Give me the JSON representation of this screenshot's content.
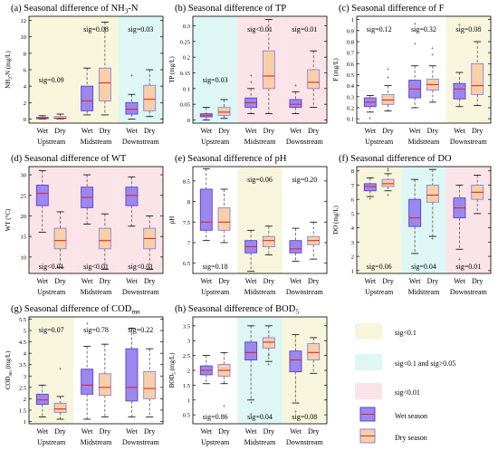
{
  "colors": {
    "sig_lt_0_1": "#f7f6dd",
    "sig_between": "#def6f4",
    "sig_lt_0_01": "#fbe4e7",
    "wet_fill": "#9b88ee",
    "wet_edge": "#5a3fd0",
    "dry_fill": "#f8cfa6",
    "dry_edge": "#8a82e3",
    "median": "#e02828",
    "whisker": "#555555",
    "outlier": "#e03030"
  },
  "categories": [
    "Upstream",
    "Midstream",
    "Downstream"
  ],
  "season_labels": [
    "Wet",
    "Dry"
  ],
  "legend": {
    "items": [
      {
        "label": "sig<0.1",
        "kind": "sig_lt_0_1"
      },
      {
        "label": "sig<0.1 and sig>0.05",
        "kind": "sig_between"
      },
      {
        "label": "sig<0.01",
        "kind": "sig_lt_0_01"
      },
      {
        "label": "Wet season",
        "kind": "wet"
      },
      {
        "label": "Dry season",
        "kind": "dry"
      }
    ]
  },
  "chart_data": [
    {
      "id": "nh3n",
      "type": "box",
      "title": "(a)  Seasonal difference of NH",
      "title_sub": "3",
      "title_after": "-N",
      "ylabel": "NH",
      "ylabel_sub": "3",
      "ylabel_after": "-N (mg/L)",
      "ylim": [
        -0.5,
        12.5
      ],
      "yticks": [
        0,
        2,
        4,
        6,
        8,
        10,
        12
      ],
      "bg": [
        "sig_lt_0_1",
        "sig_lt_0_1",
        "sig_between"
      ],
      "sig": [
        "sig=0.09",
        "sig=0.08",
        "sig=0.03"
      ],
      "sig_pos": [
        "mid",
        "top",
        "top"
      ],
      "wet": [
        {
          "min": 0.0,
          "q1": 0.05,
          "median": 0.1,
          "q3": 0.2,
          "max": 0.4,
          "outliers": []
        },
        {
          "min": 0.5,
          "q1": 1.0,
          "median": 2.2,
          "q3": 4.0,
          "max": 6.2,
          "outliers": []
        },
        {
          "min": 0.0,
          "q1": 0.6,
          "median": 1.2,
          "q3": 2.0,
          "max": 3.0,
          "outliers": [
            5.3
          ]
        }
      ],
      "dry": [
        {
          "min": 0.0,
          "q1": 0.05,
          "median": 0.1,
          "q3": 0.3,
          "max": 0.6,
          "outliers": []
        },
        {
          "min": 0.5,
          "q1": 2.2,
          "median": 4.4,
          "q3": 6.2,
          "max": 11.8,
          "outliers": []
        },
        {
          "min": 0.3,
          "q1": 1.0,
          "median": 2.4,
          "q3": 4.1,
          "max": 6.0,
          "outliers": []
        }
      ]
    },
    {
      "id": "tp",
      "type": "box",
      "title": "(b)  Seasonal difference of TP",
      "ylabel": "TP (mg/L)",
      "ylim": [
        -0.01,
        0.33
      ],
      "yticks": [
        0,
        0.05,
        0.1,
        0.15,
        0.2,
        0.25,
        0.3
      ],
      "bg": [
        "sig_between",
        "sig_lt_0_01",
        "sig_lt_0_01"
      ],
      "sig": [
        "sig=0.03",
        "sig<0.01",
        "sig=0.01"
      ],
      "sig_pos": [
        "mid",
        "top",
        "top"
      ],
      "wet": [
        {
          "min": 0.0,
          "q1": 0.01,
          "median": 0.015,
          "q3": 0.02,
          "max": 0.04,
          "outliers": []
        },
        {
          "min": 0.02,
          "q1": 0.04,
          "median": 0.055,
          "q3": 0.07,
          "max": 0.1,
          "outliers": [
            0.12,
            0.14
          ]
        },
        {
          "min": 0.02,
          "q1": 0.04,
          "median": 0.05,
          "q3": 0.065,
          "max": 0.09,
          "outliers": [
            0.11
          ]
        }
      ],
      "dry": [
        {
          "min": 0.005,
          "q1": 0.015,
          "median": 0.025,
          "q3": 0.04,
          "max": 0.065,
          "outliers": []
        },
        {
          "min": 0.02,
          "q1": 0.1,
          "median": 0.14,
          "q3": 0.22,
          "max": 0.32,
          "outliers": []
        },
        {
          "min": 0.04,
          "q1": 0.1,
          "median": 0.12,
          "q3": 0.16,
          "max": 0.22,
          "outliers": []
        }
      ]
    },
    {
      "id": "f",
      "type": "box",
      "title": "(c)  Seasonal difference of F",
      "ylabel": "F (mg/L)",
      "ylim": [
        0.06,
        1.03
      ],
      "yticks": [
        0.1,
        0.2,
        0.3,
        0.4,
        0.5,
        0.6,
        0.7,
        0.8,
        0.9,
        1
      ],
      "bg": [
        "none",
        "none",
        "sig_lt_0_1"
      ],
      "sig": [
        "sig=0.12",
        "sig=0.32",
        "sig=0.08"
      ],
      "sig_pos": [
        "top",
        "top",
        "top"
      ],
      "wet": [
        {
          "min": 0.16,
          "q1": 0.21,
          "median": 0.25,
          "q3": 0.29,
          "max": 0.31,
          "outliers": [
            0.1
          ]
        },
        {
          "min": 0.2,
          "q1": 0.29,
          "median": 0.37,
          "q3": 0.45,
          "max": 0.58,
          "outliers": [
            0.78,
            0.9,
            0.96
          ]
        },
        {
          "min": 0.21,
          "q1": 0.28,
          "median": 0.37,
          "q3": 0.42,
          "max": 0.52,
          "outliers": [
            0.95
          ]
        }
      ],
      "dry": [
        {
          "min": 0.17,
          "q1": 0.23,
          "median": 0.27,
          "q3": 0.32,
          "max": 0.4,
          "outliers": [
            0.47,
            0.55
          ]
        },
        {
          "min": 0.25,
          "q1": 0.36,
          "median": 0.41,
          "q3": 0.46,
          "max": 0.58,
          "outliers": [
            0.68,
            0.74
          ]
        },
        {
          "min": 0.22,
          "q1": 0.32,
          "median": 0.4,
          "q3": 0.6,
          "max": 0.8,
          "outliers": []
        }
      ]
    },
    {
      "id": "wt",
      "type": "box",
      "title": "(d)  Seasonal difference of WT",
      "ylabel": "WT (°C)",
      "ylim": [
        6,
        32
      ],
      "yticks": [
        10,
        15,
        20,
        25,
        30
      ],
      "bg": [
        "sig_lt_0_01",
        "sig_lt_0_01",
        "sig_lt_0_01"
      ],
      "sig": [
        "sig<0.01",
        "sig<0.01",
        "sig<0.01"
      ],
      "sig_pos": [
        "bottom",
        "bottom",
        "bottom"
      ],
      "wet": [
        {
          "min": 16,
          "q1": 22.5,
          "median": 25.5,
          "q3": 27.5,
          "max": 31,
          "outliers": []
        },
        {
          "min": 18,
          "q1": 22,
          "median": 24.5,
          "q3": 27,
          "max": 30,
          "outliers": []
        },
        {
          "min": 17.5,
          "q1": 22.5,
          "median": 25,
          "q3": 27,
          "max": 29.5,
          "outliers": []
        }
      ],
      "dry": [
        {
          "min": 7.5,
          "q1": 12,
          "median": 14,
          "q3": 17,
          "max": 21,
          "outliers": []
        },
        {
          "min": 7,
          "q1": 12,
          "median": 14,
          "q3": 17,
          "max": 20.5,
          "outliers": []
        },
        {
          "min": 7,
          "q1": 12,
          "median": 14.5,
          "q3": 17,
          "max": 20,
          "outliers": []
        }
      ]
    },
    {
      "id": "ph",
      "type": "box",
      "title": "(e)  Seasonal difference of pH",
      "ylabel": "pH",
      "ylim": [
        6.25,
        8.85
      ],
      "yticks": [
        6.5,
        7,
        7.5,
        8,
        8.5
      ],
      "bg": [
        "none",
        "sig_lt_0_1",
        "none"
      ],
      "sig": [
        "sig=0.18",
        "sig=0.06",
        "sig=0.20"
      ],
      "sig_pos": [
        "bottom",
        "top",
        "top"
      ],
      "wet": [
        {
          "min": 7.05,
          "q1": 7.3,
          "median": 7.5,
          "q3": 8.3,
          "max": 8.8,
          "outliers": []
        },
        {
          "min": 6.3,
          "q1": 6.75,
          "median": 6.9,
          "q3": 7.05,
          "max": 7.3,
          "outliers": []
        },
        {
          "min": 6.55,
          "q1": 6.75,
          "median": 6.85,
          "q3": 7.05,
          "max": 7.35,
          "outliers": []
        }
      ],
      "dry": [
        {
          "min": 7.0,
          "q1": 7.3,
          "median": 7.5,
          "q3": 7.85,
          "max": 8.3,
          "outliers": []
        },
        {
          "min": 6.7,
          "q1": 6.9,
          "median": 7.05,
          "q3": 7.15,
          "max": 7.4,
          "outliers": []
        },
        {
          "min": 6.6,
          "q1": 6.95,
          "median": 7.05,
          "q3": 7.15,
          "max": 7.5,
          "outliers": []
        }
      ]
    },
    {
      "id": "do",
      "type": "box",
      "title": "(f)  Seasonal difference of DO",
      "ylabel": "DO (mg/L)",
      "ylim": [
        0.8,
        8.3
      ],
      "yticks": [
        1,
        2,
        3,
        4,
        5,
        6,
        7,
        8
      ],
      "bg": [
        "sig_lt_0_1",
        "sig_between",
        "sig_lt_0_01"
      ],
      "sig": [
        "sig=0.06",
        "sig=0.04",
        "sig=0.01"
      ],
      "sig_pos": [
        "bottom",
        "bottom",
        "bottom"
      ],
      "wet": [
        {
          "min": 6.2,
          "q1": 6.6,
          "median": 6.9,
          "q3": 7.1,
          "max": 7.5,
          "outliers": [
            6.0
          ]
        },
        {
          "min": 2.2,
          "q1": 4.1,
          "median": 4.7,
          "q3": 6.0,
          "max": 7.4,
          "outliers": []
        },
        {
          "min": 2.5,
          "q1": 4.7,
          "median": 5.4,
          "q3": 6.1,
          "max": 7.0,
          "outliers": [
            1.8
          ]
        }
      ],
      "dry": [
        {
          "min": 6.6,
          "q1": 6.9,
          "median": 7.1,
          "q3": 7.4,
          "max": 7.8,
          "outliers": [
            6.3,
            8.0,
            8.1
          ]
        },
        {
          "min": 3.4,
          "q1": 5.8,
          "median": 6.3,
          "q3": 7.0,
          "max": 8.1,
          "outliers": [
            3.2
          ]
        },
        {
          "min": 5.0,
          "q1": 6.0,
          "median": 6.5,
          "q3": 7.0,
          "max": 7.7,
          "outliers": []
        }
      ]
    },
    {
      "id": "codmn",
      "type": "box",
      "title": "(g)  Seasonal difference of COD",
      "title_sub": "mn",
      "title_after": "",
      "ylabel": "COD",
      "ylabel_sub": "mn",
      "ylabel_after": " (mg/L)",
      "ylim": [
        0.9,
        5.6
      ],
      "yticks": [
        1,
        1.5,
        2,
        2.5,
        3,
        3.5,
        4,
        4.5,
        5,
        5.5
      ],
      "bg": [
        "sig_lt_0_1",
        "none",
        "none"
      ],
      "sig": [
        "sig=0.07",
        "sig=0.78",
        "sig=0.22"
      ],
      "sig_pos": [
        "top",
        "top",
        "top"
      ],
      "wet": [
        {
          "min": 1.2,
          "q1": 1.75,
          "median": 1.95,
          "q3": 2.2,
          "max": 2.6,
          "outliers": []
        },
        {
          "min": 1.1,
          "q1": 2.2,
          "median": 2.6,
          "q3": 3.3,
          "max": 4.3,
          "outliers": [
            5.3
          ]
        },
        {
          "min": 1.2,
          "q1": 1.9,
          "median": 2.5,
          "q3": 4.2,
          "max": 5.1,
          "outliers": []
        }
      ],
      "dry": [
        {
          "min": 1.1,
          "q1": 1.4,
          "median": 1.55,
          "q3": 1.8,
          "max": 2.1,
          "outliers": [
            3.3
          ]
        },
        {
          "min": 1.2,
          "q1": 2.15,
          "median": 2.5,
          "q3": 3.1,
          "max": 4.4,
          "outliers": []
        },
        {
          "min": 1.2,
          "q1": 2.0,
          "median": 2.45,
          "q3": 3.2,
          "max": 4.2,
          "outliers": []
        }
      ]
    },
    {
      "id": "bod5",
      "type": "box",
      "title": "(h)  Seasonal difference of BOD",
      "title_sub": "5",
      "title_after": "",
      "ylabel": "BOD",
      "ylabel_sub": "5",
      "ylabel_after": " (mg/L)",
      "ylim": [
        0.2,
        3.8
      ],
      "yticks": [
        0.5,
        1,
        1.5,
        2,
        2.5,
        3,
        3.5
      ],
      "bg": [
        "none",
        "sig_between",
        "sig_lt_0_1"
      ],
      "sig": [
        "sig=0.86",
        "sig=0.04",
        "sig=0.08"
      ],
      "sig_pos": [
        "bottom",
        "bottom",
        "bottom"
      ],
      "wet": [
        {
          "min": 1.55,
          "q1": 1.85,
          "median": 2.0,
          "q3": 2.15,
          "max": 2.5,
          "outliers": []
        },
        {
          "min": 1.0,
          "q1": 2.35,
          "median": 2.6,
          "q3": 2.95,
          "max": 3.5,
          "outliers": [
            0.9,
            0.5
          ]
        },
        {
          "min": 0.9,
          "q1": 1.95,
          "median": 2.35,
          "q3": 2.65,
          "max": 3.2,
          "outliers": [
            0.6
          ]
        }
      ],
      "dry": [
        {
          "min": 1.55,
          "q1": 1.8,
          "median": 2.0,
          "q3": 2.2,
          "max": 2.6,
          "outliers": [
            0.8
          ]
        },
        {
          "min": 2.3,
          "q1": 2.75,
          "median": 2.95,
          "q3": 3.1,
          "max": 3.5,
          "outliers": [
            2.2,
            2.5
          ]
        },
        {
          "min": 1.9,
          "q1": 2.35,
          "median": 2.6,
          "q3": 2.9,
          "max": 3.1,
          "outliers": []
        }
      ]
    }
  ]
}
